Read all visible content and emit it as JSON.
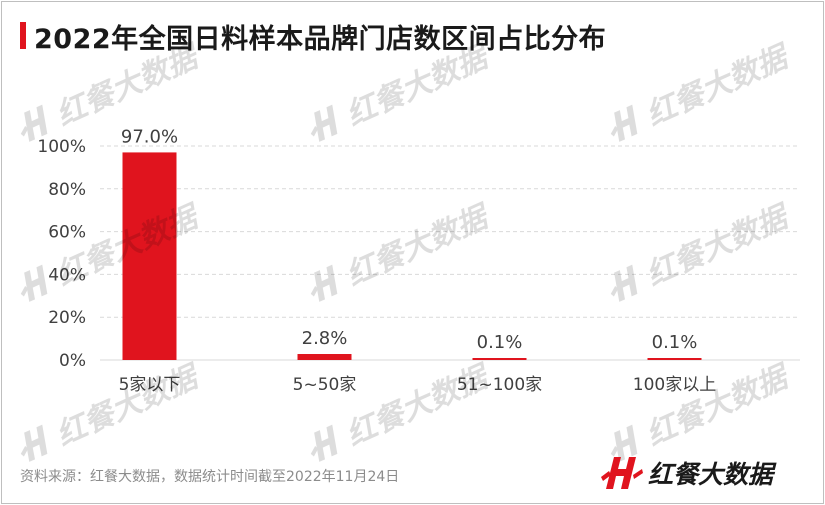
{
  "page": {
    "title": "2022年全国日料样本品牌门店数区间占比分布",
    "source": "资料来源：红餐大数据，数据统计时间截至2022年11月24日",
    "brand_name": "红餐大数据",
    "watermark_text": "红餐大数据"
  },
  "colors": {
    "accent": "#e0141e",
    "grid": "#d9d9d9",
    "text": "#404040",
    "watermark": "#000000"
  },
  "icons": {
    "brand_logo": "hongcan-h-logo-icon",
    "watermark_logo": "hongcan-h-logo-icon"
  },
  "chart_data": {
    "type": "bar",
    "title": "2022年全国日料样本品牌门店数区间占比分布",
    "categories": [
      "5家以下",
      "5~50家",
      "51~100家",
      "100家以上"
    ],
    "values": [
      97.0,
      2.8,
      0.1,
      0.1
    ],
    "value_labels": [
      "97.0%",
      "2.8%",
      "0.1%",
      "0.1%"
    ],
    "y_ticks": [
      0,
      20,
      40,
      60,
      80,
      100
    ],
    "y_tick_labels": [
      "0%",
      "20%",
      "40%",
      "60%",
      "80%",
      "100%"
    ],
    "ylim": [
      0,
      100
    ],
    "grid": true,
    "legend": "none",
    "xlabel": "",
    "ylabel": ""
  }
}
